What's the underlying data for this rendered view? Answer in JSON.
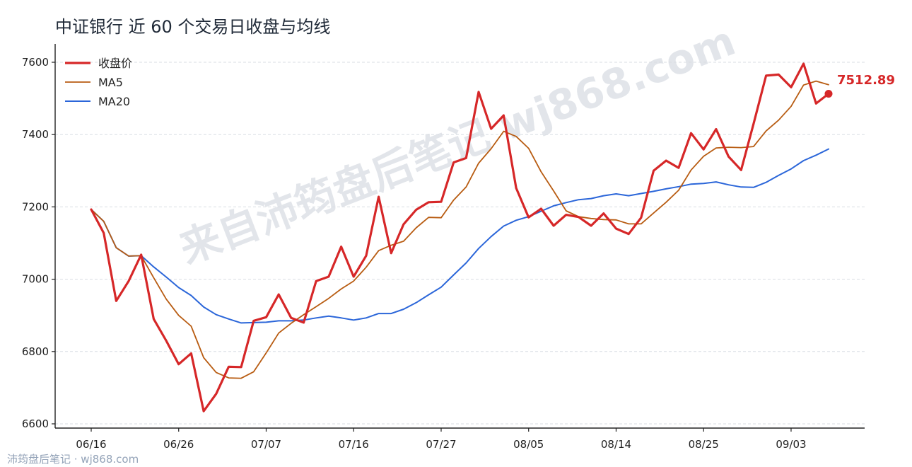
{
  "watermark": "来自沛筠盘后笔记 wj868.com",
  "footer": "沛筠盘后笔记 · wj868.com",
  "colors": {
    "close": "#d62728",
    "ma5": "#b85c12",
    "ma20": "#2b66d9"
  },
  "chart_data": {
    "type": "line",
    "title": "中证银行 近 60 个交易日收盘与均线",
    "xlabel": "",
    "ylabel": "",
    "ylim": [
      6600,
      7650
    ],
    "yticks": [
      6600,
      6800,
      7000,
      7200,
      7400,
      7600
    ],
    "grid": "horizontal dashed",
    "legend_position": "top-left",
    "x_tick_labels": [
      {
        "index": 0,
        "label": "06/16"
      },
      {
        "index": 7,
        "label": "06/26"
      },
      {
        "index": 14,
        "label": "07/07"
      },
      {
        "index": 21,
        "label": "07/16"
      },
      {
        "index": 28,
        "label": "07/27"
      },
      {
        "index": 35,
        "label": "08/05"
      },
      {
        "index": 42,
        "label": "08/14"
      },
      {
        "index": 49,
        "label": "08/25"
      },
      {
        "index": 56,
        "label": "09/03"
      }
    ],
    "series": [
      {
        "name": "收盘价",
        "color": "#d62728",
        "values": [
          7193,
          7128,
          6940,
          6995,
          7068,
          6890,
          6830,
          6765,
          6795,
          6635,
          6683,
          6758,
          6757,
          6885,
          6895,
          6958,
          6893,
          6880,
          6995,
          7007,
          7090,
          7007,
          7065,
          7228,
          7072,
          7152,
          7192,
          7213,
          7214,
          7323,
          7335,
          7518,
          7416,
          7453,
          7252,
          7171,
          7195,
          7148,
          7178,
          7172,
          7148,
          7182,
          7140,
          7125,
          7170,
          7300,
          7328,
          7308,
          7404,
          7359,
          7415,
          7339,
          7302,
          7430,
          7563,
          7566,
          7531,
          7596,
          7486,
          7513
        ]
      },
      {
        "name": "MA5",
        "color": "#b85c12",
        "values": [
          7193,
          7160,
          7087,
          7064,
          7065,
          7004,
          6945,
          6900,
          6870,
          6783,
          6742,
          6727,
          6726,
          6744,
          6796,
          6851,
          6878,
          6902,
          6924,
          6947,
          6973,
          6995,
          7033,
          7079,
          7094,
          7105,
          7142,
          7171,
          7170,
          7219,
          7255,
          7321,
          7361,
          7409,
          7395,
          7362,
          7297,
          7244,
          7189,
          7173,
          7168,
          7165,
          7164,
          7153,
          7153,
          7183,
          7213,
          7246,
          7302,
          7340,
          7363,
          7365,
          7364,
          7367,
          7410,
          7440,
          7478,
          7537,
          7548,
          7538
        ]
      },
      {
        "name": "MA20",
        "color": "#2b66d9",
        "values": [
          7193,
          7160,
          7087,
          7064,
          7065,
          7034,
          7006,
          6977,
          6955,
          6923,
          6902,
          6890,
          6879,
          6880,
          6881,
          6885,
          6885,
          6887,
          6893,
          6898,
          6893,
          6887,
          6893,
          6905,
          6905,
          6917,
          6935,
          6957,
          6978,
          7012,
          7045,
          7085,
          7118,
          7147,
          7163,
          7173,
          7188,
          7203,
          7212,
          7220,
          7223,
          7231,
          7236,
          7231,
          7237,
          7243,
          7250,
          7256,
          7263,
          7265,
          7269,
          7261,
          7255,
          7254,
          7268,
          7287,
          7305,
          7328,
          7343,
          7360
        ]
      }
    ],
    "last_value_label": "7512.89"
  }
}
